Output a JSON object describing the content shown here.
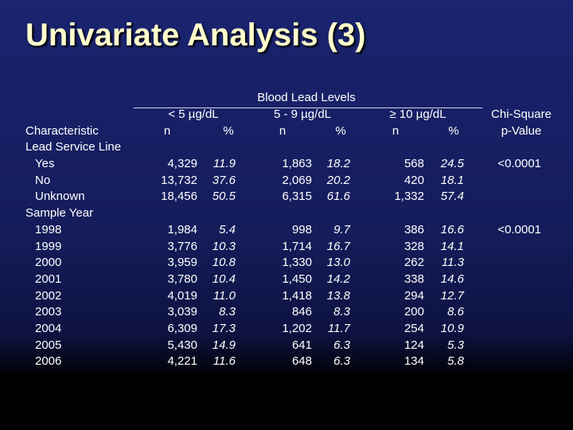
{
  "title": "Univariate Analysis (3)",
  "header": {
    "group_title": "Blood Lead Levels",
    "groups": [
      "< 5 µg/dL",
      "5 - 9 µg/dL",
      "≥ 10 µg/dL"
    ],
    "n_label": "n",
    "pct_label": "%",
    "chi_line1": "Chi-Square",
    "chi_line2": "p-Value",
    "characteristic": "Characteristic"
  },
  "rows": [
    {
      "label": "Lead Service Line",
      "indent": false,
      "values": [
        "",
        "",
        "",
        "",
        "",
        ""
      ],
      "p": ""
    },
    {
      "label": "Yes",
      "indent": true,
      "values": [
        "4,329",
        "11.9",
        "1,863",
        "18.2",
        "568",
        "24.5"
      ],
      "p": "<0.0001"
    },
    {
      "label": "No",
      "indent": true,
      "values": [
        "13,732",
        "37.6",
        "2,069",
        "20.2",
        "420",
        "18.1"
      ],
      "p": ""
    },
    {
      "label": "Unknown",
      "indent": true,
      "values": [
        "18,456",
        "50.5",
        "6,315",
        "61.6",
        "1,332",
        "57.4"
      ],
      "p": ""
    },
    {
      "label": "Sample Year",
      "indent": false,
      "values": [
        "",
        "",
        "",
        "",
        "",
        ""
      ],
      "p": ""
    },
    {
      "label": "1998",
      "indent": true,
      "values": [
        "1,984",
        "5.4",
        "998",
        "9.7",
        "386",
        "16.6"
      ],
      "p": "<0.0001"
    },
    {
      "label": "1999",
      "indent": true,
      "values": [
        "3,776",
        "10.3",
        "1,714",
        "16.7",
        "328",
        "14.1"
      ],
      "p": ""
    },
    {
      "label": "2000",
      "indent": true,
      "values": [
        "3,959",
        "10.8",
        "1,330",
        "13.0",
        "262",
        "11.3"
      ],
      "p": ""
    },
    {
      "label": "2001",
      "indent": true,
      "values": [
        "3,780",
        "10.4",
        "1,450",
        "14.2",
        "338",
        "14.6"
      ],
      "p": ""
    },
    {
      "label": "2002",
      "indent": true,
      "values": [
        "4,019",
        "11.0",
        "1,418",
        "13.8",
        "294",
        "12.7"
      ],
      "p": ""
    },
    {
      "label": "2003",
      "indent": true,
      "values": [
        "3,039",
        "8.3",
        "846",
        "8.3",
        "200",
        "8.6"
      ],
      "p": ""
    },
    {
      "label": "2004",
      "indent": true,
      "values": [
        "6,309",
        "17.3",
        "1,202",
        "11.7",
        "254",
        "10.9"
      ],
      "p": ""
    },
    {
      "label": "2005",
      "indent": true,
      "values": [
        "5,430",
        "14.9",
        "641",
        "6.3",
        "124",
        "5.3"
      ],
      "p": ""
    },
    {
      "label": "2006",
      "indent": true,
      "values": [
        "4,221",
        "11.6",
        "648",
        "6.3",
        "134",
        "5.8"
      ],
      "p": ""
    }
  ]
}
